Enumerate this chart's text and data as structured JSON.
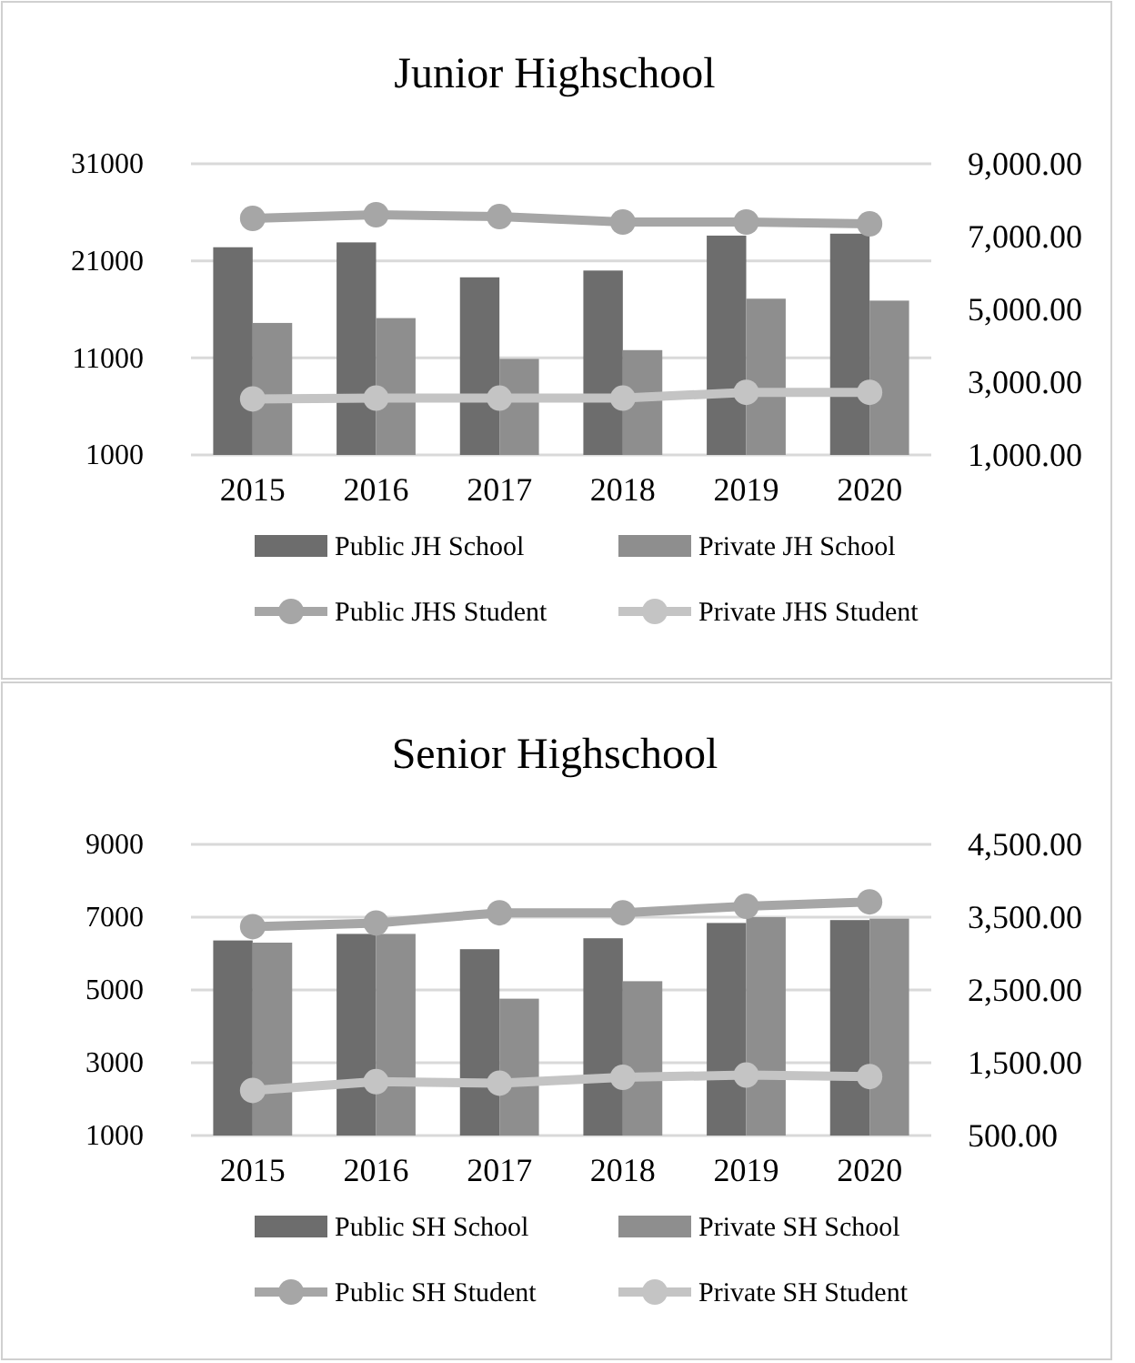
{
  "chart_data": [
    {
      "type": "bar",
      "title": "Junior Highschool",
      "categories": [
        "2015",
        "2016",
        "2017",
        "2018",
        "2019",
        "2020"
      ],
      "series": [
        {
          "name": "Public JH School",
          "color": "#6d6d6d",
          "values": [
            22400,
            22900,
            19300,
            20000,
            23600,
            23800
          ]
        },
        {
          "name": "Private JH School",
          "color": "#8e8e8e",
          "values": [
            14600,
            15100,
            10900,
            11800,
            17100,
            16900
          ]
        },
        {
          "name": "Public JHS Student",
          "type": "line",
          "axis": "y2",
          "color": "#a6a6a6",
          "values": [
            7500,
            7600,
            7550,
            7400,
            7400,
            7350
          ]
        },
        {
          "name": "Private JHS Student",
          "type": "line",
          "axis": "y2",
          "color": "#c4c4c4",
          "values": [
            2540,
            2560,
            2560,
            2560,
            2720,
            2720
          ]
        }
      ],
      "ylim": [
        1000,
        31000
      ],
      "yticks": [
        1000,
        11000,
        21000,
        31000
      ],
      "y2lim": [
        1000,
        9000
      ],
      "y2ticks": [
        {
          "value": 1000,
          "label": "1,000.00"
        },
        {
          "value": 3000,
          "label": "3,000.00"
        },
        {
          "value": 5000,
          "label": "5,000.00"
        },
        {
          "value": 7000,
          "label": "7,000.00"
        },
        {
          "value": 9000,
          "label": "9,000.00"
        }
      ],
      "grid": "y",
      "legend": "bottom",
      "marker": "circle"
    },
    {
      "type": "bar",
      "title": "Senior Highschool",
      "categories": [
        "2015",
        "2016",
        "2017",
        "2018",
        "2019",
        "2020"
      ],
      "series": [
        {
          "name": "Public SH School",
          "color": "#6d6d6d",
          "values": [
            6360,
            6540,
            6120,
            6420,
            6840,
            6920
          ]
        },
        {
          "name": "Private SH School",
          "color": "#8e8e8e",
          "values": [
            6300,
            6540,
            4760,
            5240,
            7000,
            6960
          ]
        },
        {
          "name": "Public SH Student",
          "type": "line",
          "axis": "y2",
          "color": "#a6a6a6",
          "values": [
            3370,
            3420,
            3560,
            3560,
            3650,
            3710
          ]
        },
        {
          "name": "Private SH Student",
          "type": "line",
          "axis": "y2",
          "color": "#c4c4c4",
          "values": [
            1120,
            1240,
            1220,
            1300,
            1330,
            1310
          ]
        }
      ],
      "ylim": [
        1000,
        9000
      ],
      "yticks": [
        1000,
        3000,
        5000,
        7000,
        9000
      ],
      "y2lim": [
        500,
        4500
      ],
      "y2ticks": [
        {
          "value": 500,
          "label": "500.00"
        },
        {
          "value": 1500,
          "label": "1,500.00"
        },
        {
          "value": 2500,
          "label": "2,500.00"
        },
        {
          "value": 3500,
          "label": "3,500.00"
        },
        {
          "value": 4500,
          "label": "4,500.00"
        }
      ],
      "grid": "y",
      "legend": "bottom",
      "marker": "circle"
    }
  ]
}
